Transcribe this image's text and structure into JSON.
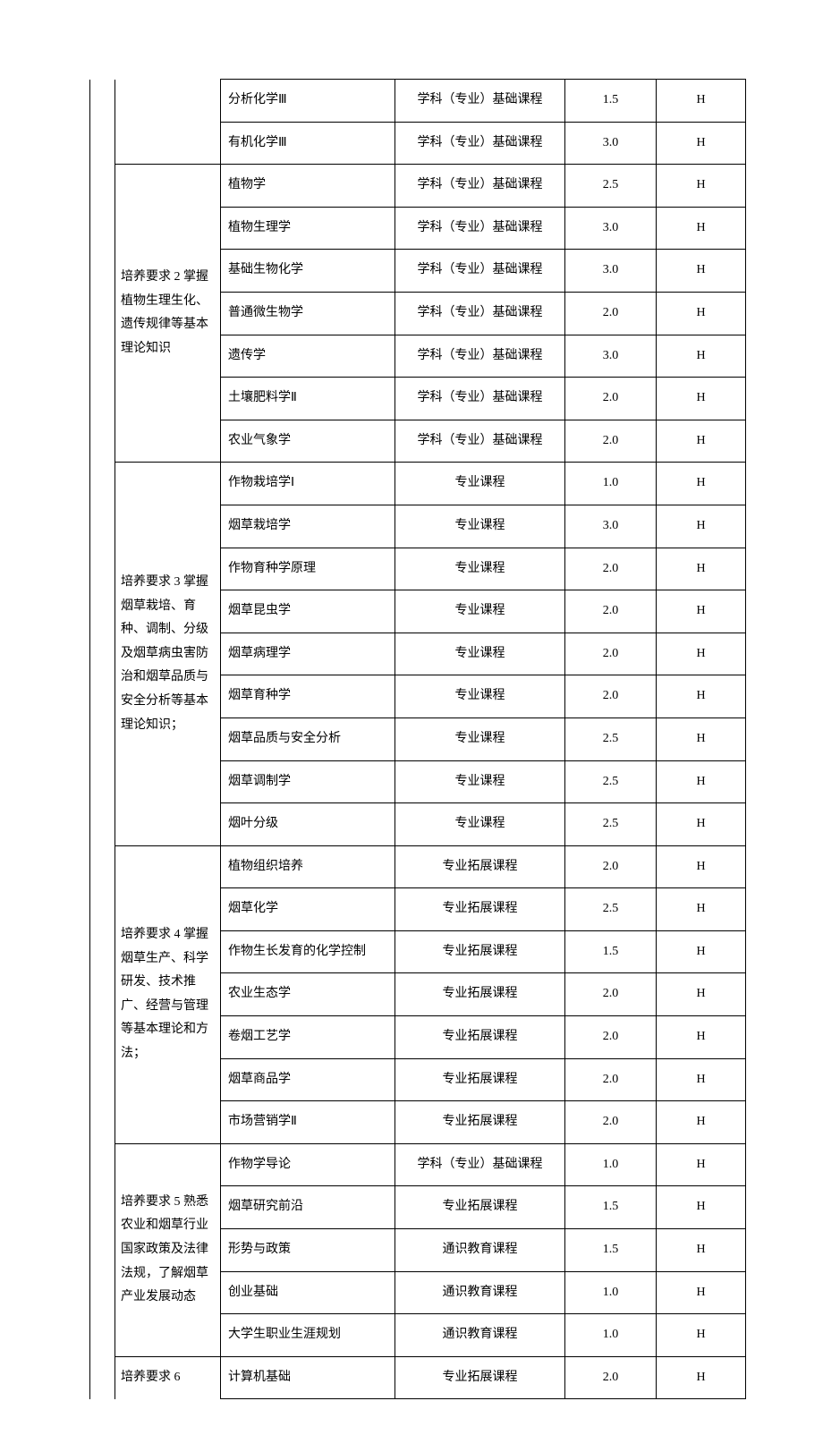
{
  "font_family": "SimSun",
  "text_color": "#000000",
  "border_color": "#000000",
  "background_color": "#ffffff",
  "groups": [
    {
      "requirement": "",
      "continue_from_prev": true,
      "rows": [
        {
          "course": "分析化学Ⅲ",
          "type": "学科（专业）基础课程",
          "credit": "1.5",
          "level": "H"
        },
        {
          "course": "有机化学Ⅲ",
          "type": "学科（专业）基础课程",
          "credit": "3.0",
          "level": "H"
        }
      ]
    },
    {
      "requirement": "培养要求 2\n掌握植物生理生化、遗传规律等基本理论知识",
      "rows": [
        {
          "course": "植物学",
          "type": "学科（专业）基础课程",
          "credit": "2.5",
          "level": "H"
        },
        {
          "course": "植物生理学",
          "type": "学科（专业）基础课程",
          "credit": "3.0",
          "level": "H"
        },
        {
          "course": "基础生物化学",
          "type": "学科（专业）基础课程",
          "credit": "3.0",
          "level": "H"
        },
        {
          "course": "普通微生物学",
          "type": "学科（专业）基础课程",
          "credit": "2.0",
          "level": "H"
        },
        {
          "course": "遗传学",
          "type": "学科（专业）基础课程",
          "credit": "3.0",
          "level": "H"
        },
        {
          "course": "土壤肥料学Ⅱ",
          "type": "学科（专业）基础课程",
          "credit": "2.0",
          "level": "H"
        },
        {
          "course": "农业气象学",
          "type": "学科（专业）基础课程",
          "credit": "2.0",
          "level": "H"
        }
      ]
    },
    {
      "requirement": "培养要求 3\n掌握烟草栽培、育种、调制、分级及烟草病虫害防治和烟草品质与安全分析等基本理论知识；",
      "rows": [
        {
          "course": "作物栽培学Ⅰ",
          "type": "专业课程",
          "credit": "1.0",
          "level": "H"
        },
        {
          "course": "烟草栽培学",
          "type": "专业课程",
          "credit": "3.0",
          "level": "H"
        },
        {
          "course": "作物育种学原理",
          "type": "专业课程",
          "credit": "2.0",
          "level": "H"
        },
        {
          "course": "烟草昆虫学",
          "type": "专业课程",
          "credit": "2.0",
          "level": "H"
        },
        {
          "course": "烟草病理学",
          "type": "专业课程",
          "credit": "2.0",
          "level": "H"
        },
        {
          "course": "烟草育种学",
          "type": "专业课程",
          "credit": "2.0",
          "level": "H"
        },
        {
          "course": "烟草品质与安全分析",
          "type": "专业课程",
          "credit": "2.5",
          "level": "H"
        },
        {
          "course": "烟草调制学",
          "type": "专业课程",
          "credit": "2.5",
          "level": "H"
        },
        {
          "course": "烟叶分级",
          "type": "专业课程",
          "credit": "2.5",
          "level": "H"
        }
      ]
    },
    {
      "requirement": "培养要求 4\n掌握烟草生产、科学研发、技术推广、经营与管理等基本理论和方法；",
      "rows": [
        {
          "course": "植物组织培养",
          "type": "专业拓展课程",
          "credit": "2.0",
          "level": "H"
        },
        {
          "course": "烟草化学",
          "type": "专业拓展课程",
          "credit": "2.5",
          "level": "H"
        },
        {
          "course": "作物生长发育的化学控制",
          "type": "专业拓展课程",
          "credit": "1.5",
          "level": "H"
        },
        {
          "course": "农业生态学",
          "type": "专业拓展课程",
          "credit": "2.0",
          "level": "H"
        },
        {
          "course": "卷烟工艺学",
          "type": "专业拓展课程",
          "credit": "2.0",
          "level": "H"
        },
        {
          "course": "烟草商品学",
          "type": "专业拓展课程",
          "credit": "2.0",
          "level": "H"
        },
        {
          "course": "市场营销学Ⅱ",
          "type": "专业拓展课程",
          "credit": "2.0",
          "level": "H"
        }
      ]
    },
    {
      "requirement": "培养要求 5\n熟悉农业和烟草行业国家政策及法律法规，了解烟草产业发展动态",
      "rows": [
        {
          "course": "作物学导论",
          "type": "学科（专业）基础课程",
          "credit": "1.0",
          "level": "H"
        },
        {
          "course": "烟草研究前沿",
          "type": "专业拓展课程",
          "credit": "1.5",
          "level": "H"
        },
        {
          "course": "形势与政策",
          "type": "通识教育课程",
          "credit": "1.5",
          "level": "H"
        },
        {
          "course": "创业基础",
          "type": "通识教育课程",
          "credit": "1.0",
          "level": "H"
        },
        {
          "course": "大学生职业生涯规划",
          "type": "通识教育课程",
          "credit": "1.0",
          "level": "H"
        }
      ]
    },
    {
      "requirement": "培养要求 6",
      "continue_to_next": true,
      "rows": [
        {
          "course": "计算机基础",
          "type": "专业拓展课程",
          "credit": "2.0",
          "level": "H"
        }
      ]
    }
  ]
}
